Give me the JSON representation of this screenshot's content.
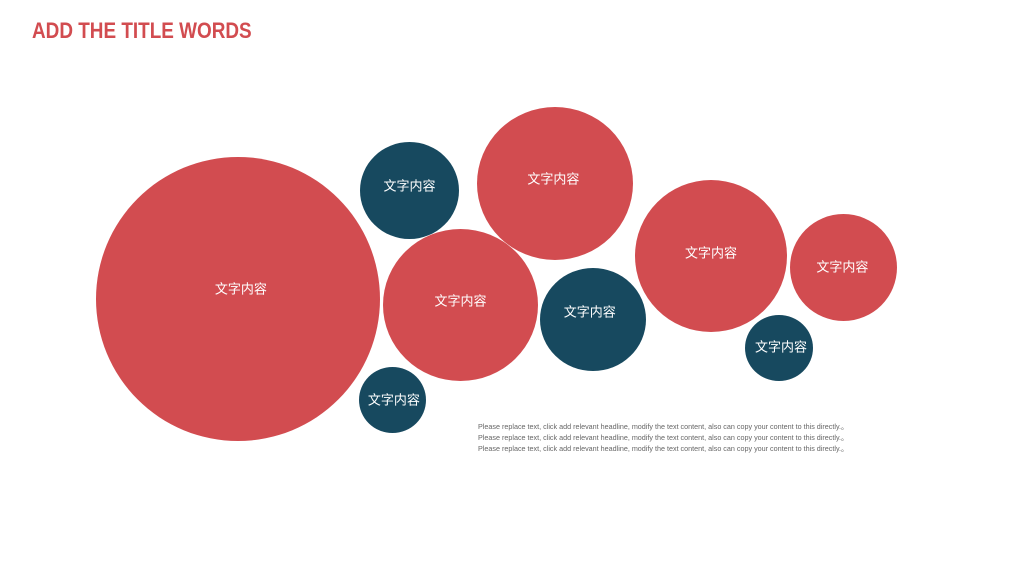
{
  "title": "ADD THE TITLE WORDS",
  "colors": {
    "title": "#d24c50",
    "red_bubble": "#d24c50",
    "navy_bubble": "#17495f",
    "body_text": "#666666"
  },
  "bubbles": [
    {
      "label": "文字内容",
      "color": "red"
    },
    {
      "label": "文字内容",
      "color": "navy"
    },
    {
      "label": "文字内容",
      "color": "red"
    },
    {
      "label": "文字内容",
      "color": "red"
    },
    {
      "label": "文字内容",
      "color": "red"
    },
    {
      "label": "文字内容",
      "color": "red"
    },
    {
      "label": "文字内容",
      "color": "navy"
    },
    {
      "label": "文字内容",
      "color": "navy"
    },
    {
      "label": "文字内容",
      "color": "navy"
    }
  ],
  "body_lines": [
    "Please replace text, click add relevant headline, modify the text content, also can copy your content to this directly.。",
    "Please replace text, click add relevant headline, modify the text content, also can copy your content to this directly.。",
    "Please replace text, click add relevant headline, modify the text content, also can copy your content to this directly.。"
  ]
}
